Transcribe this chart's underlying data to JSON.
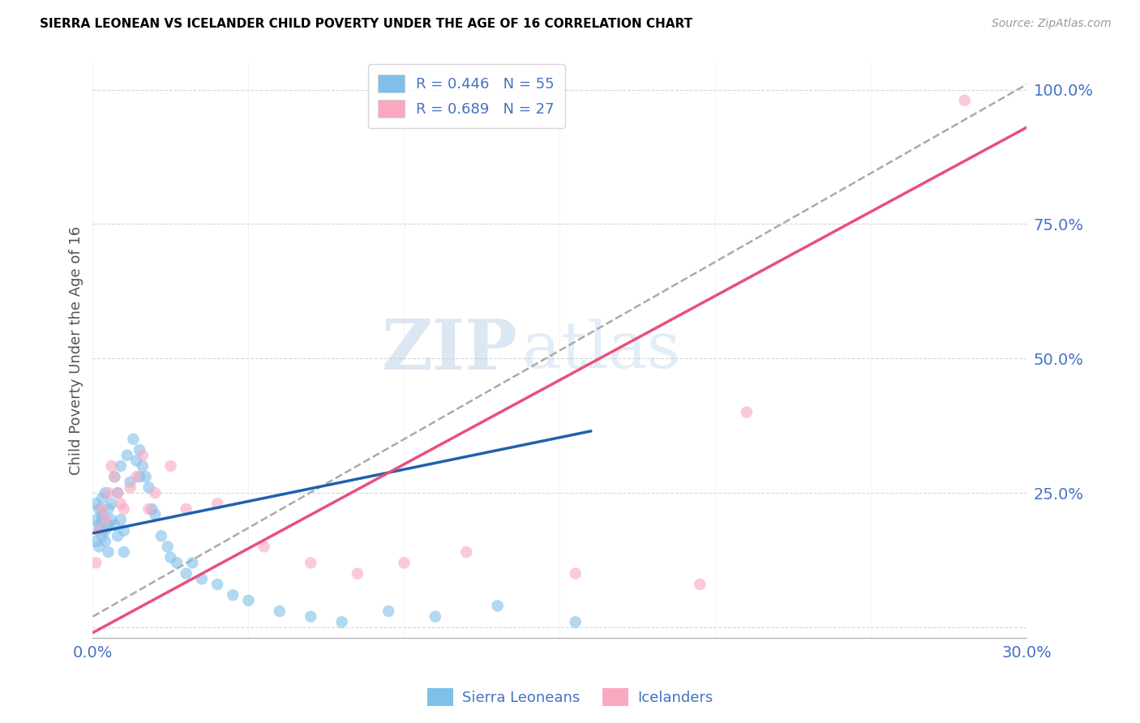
{
  "title": "SIERRA LEONEAN VS ICELANDER CHILD POVERTY UNDER THE AGE OF 16 CORRELATION CHART",
  "source": "Source: ZipAtlas.com",
  "ylabel": "Child Poverty Under the Age of 16",
  "xmin": 0.0,
  "xmax": 0.3,
  "ymin": -0.02,
  "ymax": 1.05,
  "yticks": [
    0.0,
    0.25,
    0.5,
    0.75,
    1.0
  ],
  "ytick_labels": [
    "",
    "25.0%",
    "50.0%",
    "75.0%",
    "100.0%"
  ],
  "xticks": [
    0.0,
    0.05,
    0.1,
    0.15,
    0.2,
    0.25,
    0.3
  ],
  "xtick_labels": [
    "0.0%",
    "",
    "",
    "",
    "",
    "",
    "30.0%"
  ],
  "color_blue": "#7fbfea",
  "color_pink": "#f9a8c0",
  "color_blue_line": "#2060b0",
  "color_pink_line": "#e8507a",
  "color_dashed": "#aaaaaa",
  "watermark_zip": "ZIP",
  "watermark_atlas": "atlas",
  "blue_line_x0": 0.0,
  "blue_line_y0": 0.175,
  "blue_line_x1": 0.16,
  "blue_line_y1": 0.365,
  "pink_line_x0": 0.0,
  "pink_line_y0": -0.01,
  "pink_line_x1": 0.3,
  "pink_line_y1": 0.93,
  "dashed_line_x0": 0.0,
  "dashed_line_y0": 0.02,
  "dashed_line_x1": 0.3,
  "dashed_line_y1": 1.01,
  "sierra_x": [
    0.001,
    0.001,
    0.001,
    0.002,
    0.002,
    0.002,
    0.002,
    0.003,
    0.003,
    0.003,
    0.003,
    0.004,
    0.004,
    0.004,
    0.005,
    0.005,
    0.005,
    0.006,
    0.006,
    0.007,
    0.007,
    0.008,
    0.008,
    0.009,
    0.009,
    0.01,
    0.01,
    0.011,
    0.012,
    0.013,
    0.014,
    0.015,
    0.015,
    0.016,
    0.017,
    0.018,
    0.019,
    0.02,
    0.022,
    0.024,
    0.025,
    0.027,
    0.03,
    0.032,
    0.035,
    0.04,
    0.045,
    0.05,
    0.06,
    0.07,
    0.08,
    0.095,
    0.11,
    0.13,
    0.155
  ],
  "sierra_y": [
    0.2,
    0.16,
    0.23,
    0.18,
    0.22,
    0.15,
    0.19,
    0.21,
    0.17,
    0.24,
    0.2,
    0.18,
    0.25,
    0.16,
    0.22,
    0.19,
    0.14,
    0.2,
    0.23,
    0.28,
    0.19,
    0.25,
    0.17,
    0.3,
    0.2,
    0.18,
    0.14,
    0.32,
    0.27,
    0.35,
    0.31,
    0.28,
    0.33,
    0.3,
    0.28,
    0.26,
    0.22,
    0.21,
    0.17,
    0.15,
    0.13,
    0.12,
    0.1,
    0.12,
    0.09,
    0.08,
    0.06,
    0.05,
    0.03,
    0.02,
    0.01,
    0.03,
    0.02,
    0.04,
    0.01
  ],
  "iceland_x": [
    0.001,
    0.002,
    0.003,
    0.004,
    0.005,
    0.006,
    0.007,
    0.008,
    0.009,
    0.01,
    0.012,
    0.014,
    0.016,
    0.018,
    0.02,
    0.025,
    0.03,
    0.04,
    0.055,
    0.07,
    0.085,
    0.1,
    0.12,
    0.155,
    0.195,
    0.21,
    0.28
  ],
  "iceland_y": [
    0.12,
    0.18,
    0.22,
    0.2,
    0.25,
    0.3,
    0.28,
    0.25,
    0.23,
    0.22,
    0.26,
    0.28,
    0.32,
    0.22,
    0.25,
    0.3,
    0.22,
    0.23,
    0.15,
    0.12,
    0.1,
    0.12,
    0.14,
    0.1,
    0.08,
    0.4,
    0.98
  ]
}
